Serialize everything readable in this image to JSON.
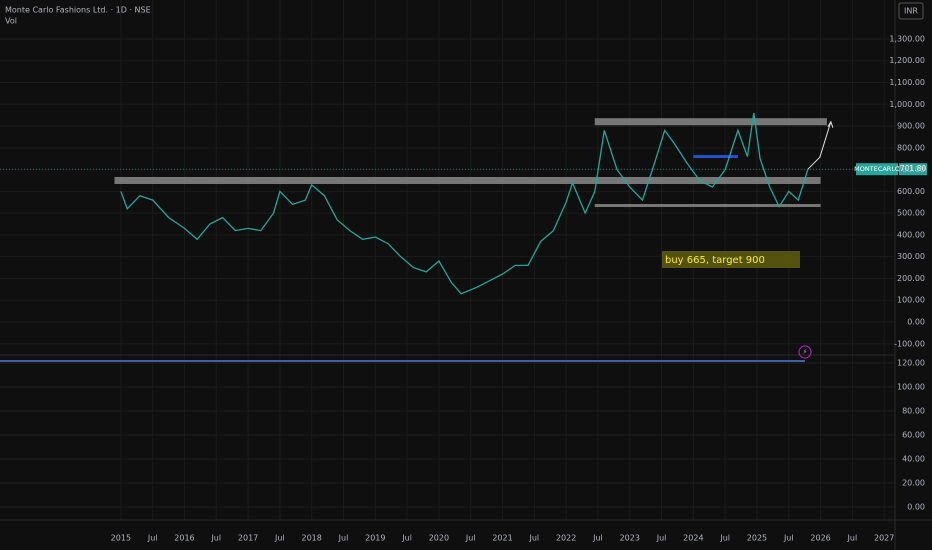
{
  "chart_data": {
    "type": "line",
    "title": "Monte Carlo Fashions Ltd. · 1D · NSE",
    "subtitle": "Vol",
    "currency": "INR",
    "symbol": "MONTECARLO",
    "last_price": {
      "value": 701.8,
      "label": "701.80"
    },
    "annotation": "buy 665, target 900",
    "grid": true,
    "xlim": [
      2013.1,
      2027.17
    ],
    "xticks": [
      {
        "value": 2015,
        "label": "2015"
      },
      {
        "value": 2015.5,
        "label": "Jul"
      },
      {
        "value": 2016,
        "label": "2016"
      },
      {
        "value": 2016.5,
        "label": "Jul"
      },
      {
        "value": 2017,
        "label": "2017"
      },
      {
        "value": 2017.5,
        "label": "Jul"
      },
      {
        "value": 2018,
        "label": "2018"
      },
      {
        "value": 2018.5,
        "label": "Jul"
      },
      {
        "value": 2019,
        "label": "2019"
      },
      {
        "value": 2019.5,
        "label": "Jul"
      },
      {
        "value": 2020,
        "label": "2020"
      },
      {
        "value": 2020.5,
        "label": "Jul"
      },
      {
        "value": 2021,
        "label": "2021"
      },
      {
        "value": 2021.5,
        "label": "Jul"
      },
      {
        "value": 2022,
        "label": "2022"
      },
      {
        "value": 2022.5,
        "label": "Jul"
      },
      {
        "value": 2023,
        "label": "2023"
      },
      {
        "value": 2023.5,
        "label": "Jul"
      },
      {
        "value": 2024,
        "label": "2024"
      },
      {
        "value": 2024.5,
        "label": "Jul"
      },
      {
        "value": 2025,
        "label": "2025"
      },
      {
        "value": 2025.5,
        "label": "Jul"
      },
      {
        "value": 2026,
        "label": "2026"
      },
      {
        "value": 2026.5,
        "label": "Jul"
      },
      {
        "value": 2027,
        "label": "2027"
      }
    ],
    "ylim": [
      -151.6,
      1479
    ],
    "yticks": [
      {
        "value": 1300,
        "label": "1,300.00"
      },
      {
        "value": 1200,
        "label": "1,200.00"
      },
      {
        "value": 1100,
        "label": "1,100.00"
      },
      {
        "value": 1000,
        "label": "1,000.00"
      },
      {
        "value": 900,
        "label": "900.00"
      },
      {
        "value": 800,
        "label": "800.00"
      },
      {
        "value": 700,
        "label": "700.00"
      },
      {
        "value": 600,
        "label": "600.00"
      },
      {
        "value": 500,
        "label": "500.00"
      },
      {
        "value": 400,
        "label": "400.00"
      },
      {
        "value": 300,
        "label": "300.00"
      },
      {
        "value": 200,
        "label": "200.00"
      },
      {
        "value": 100,
        "label": "100.00"
      },
      {
        "value": 0,
        "label": "0.00"
      },
      {
        "value": -100,
        "label": "-100.00"
      }
    ],
    "y2lim": [
      -10.8,
      126.7
    ],
    "y2ticks": [
      {
        "value": 120,
        "label": "120.00"
      },
      {
        "value": 100,
        "label": "100.00"
      },
      {
        "value": 80,
        "label": "80.00"
      },
      {
        "value": 60,
        "label": "60.00"
      },
      {
        "value": 40,
        "label": "40.00"
      },
      {
        "value": 20,
        "label": "20.00"
      },
      {
        "value": 0,
        "label": "0.00"
      }
    ],
    "zones": [
      {
        "value": 650,
        "x": [
          2014.9,
          2026.0
        ]
      },
      {
        "value": 920,
        "x": [
          2022.45,
          2026.1
        ]
      },
      {
        "value": 535,
        "x": [
          2022.45,
          2026.0
        ]
      },
      {
        "value": 760,
        "x": [
          2024.0,
          2024.7
        ]
      }
    ],
    "series": [
      {
        "name": "MONTECARLO",
        "color": "#26a69a",
        "x": [
          2015.0,
          2015.1,
          2015.3,
          2015.5,
          2015.75,
          2016.0,
          2016.2,
          2016.4,
          2016.6,
          2016.8,
          2017.0,
          2017.2,
          2017.4,
          2017.5,
          2017.7,
          2017.9,
          2018.0,
          2018.2,
          2018.4,
          2018.6,
          2018.8,
          2019.0,
          2019.2,
          2019.4,
          2019.6,
          2019.8,
          2020.0,
          2020.2,
          2020.35,
          2020.6,
          2020.8,
          2021.0,
          2021.2,
          2021.4,
          2021.6,
          2021.8,
          2022.0,
          2022.1,
          2022.3,
          2022.45,
          2022.6,
          2022.8,
          2023.0,
          2023.2,
          2023.4,
          2023.55,
          2023.7,
          2023.9,
          2024.1,
          2024.3,
          2024.5,
          2024.7,
          2024.85,
          2024.95,
          2025.05,
          2025.2,
          2025.35,
          2025.5,
          2025.65,
          2025.8
        ],
        "values": [
          600,
          520,
          580,
          560,
          480,
          430,
          380,
          450,
          480,
          420,
          430,
          420,
          500,
          600,
          540,
          560,
          630,
          580,
          470,
          420,
          380,
          390,
          360,
          300,
          250,
          230,
          280,
          180,
          130,
          160,
          190,
          220,
          260,
          260,
          370,
          420,
          550,
          640,
          500,
          600,
          880,
          700,
          620,
          560,
          740,
          880,
          820,
          730,
          650,
          620,
          700,
          880,
          760,
          960,
          750,
          620,
          530,
          600,
          560,
          701.8
        ]
      }
    ]
  }
}
